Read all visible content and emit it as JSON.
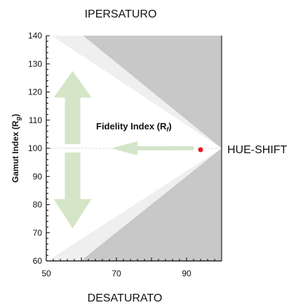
{
  "chart_data": {
    "type": "scatter",
    "title": "",
    "xlabel": "",
    "ylabel_main": "Gamut Index (R",
    "ylabel_sub": "g",
    "ylabel_close": ")",
    "xlim": [
      50,
      100
    ],
    "ylim": [
      60,
      140
    ],
    "x_ticks": [
      50,
      70,
      90
    ],
    "y_ticks": [
      60,
      70,
      80,
      90,
      100,
      110,
      120,
      130,
      140
    ],
    "grid": false,
    "points": [
      {
        "x": 94,
        "y": 99.5
      }
    ],
    "reference_line_y": 100,
    "regions": {
      "top": "IPERSATURO",
      "bottom": "DESATURATO",
      "right": "HUE-SHIFT"
    },
    "annotation": {
      "main": "Fidelity Index (R",
      "sub": "f",
      "close": ")"
    },
    "colors": {
      "dark_region": "#c8c8c8",
      "light_band": "#efefef",
      "arrow": "#d4e6c7",
      "point": "#e8141e",
      "reference_line": "#d8d8d8"
    }
  }
}
